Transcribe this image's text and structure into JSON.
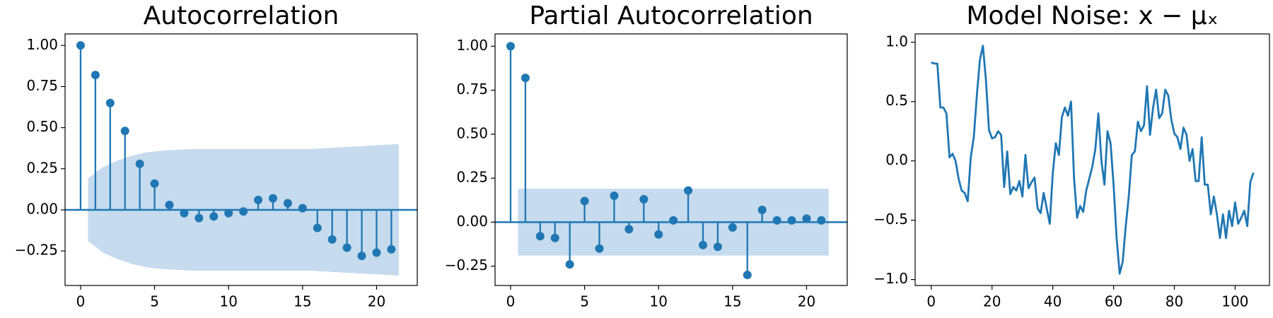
{
  "chart_data": [
    {
      "type": "stem",
      "title": "Autocorrelation",
      "color": "#1f77b4",
      "band_color": "#c6dbee",
      "x": [
        0,
        1,
        2,
        3,
        4,
        5,
        6,
        7,
        8,
        9,
        10,
        11,
        12,
        13,
        14,
        15,
        16,
        17,
        18,
        19,
        20,
        21
      ],
      "values": [
        1.0,
        0.82,
        0.65,
        0.48,
        0.28,
        0.16,
        0.03,
        -0.02,
        -0.05,
        -0.04,
        -0.02,
        -0.01,
        0.06,
        0.07,
        0.04,
        0.01,
        -0.11,
        -0.18,
        -0.23,
        -0.28,
        -0.26,
        -0.24
      ],
      "band": {
        "x": [
          0.5,
          1.5,
          2.5,
          3.5,
          4.5,
          5.5,
          6.5,
          7.5,
          8.5,
          9.5,
          10.5,
          11.5,
          12.5,
          13.5,
          14.5,
          15.5,
          16.5,
          17.5,
          18.5,
          19.5,
          20.5,
          21.5
        ],
        "upper": [
          0.19,
          0.26,
          0.3,
          0.33,
          0.35,
          0.36,
          0.365,
          0.37,
          0.37,
          0.37,
          0.37,
          0.37,
          0.37,
          0.37,
          0.37,
          0.37,
          0.375,
          0.38,
          0.385,
          0.39,
          0.395,
          0.4
        ],
        "lower": [
          -0.19,
          -0.26,
          -0.3,
          -0.33,
          -0.35,
          -0.36,
          -0.365,
          -0.37,
          -0.37,
          -0.37,
          -0.37,
          -0.37,
          -0.37,
          -0.37,
          -0.37,
          -0.37,
          -0.375,
          -0.38,
          -0.385,
          -0.39,
          -0.395,
          -0.4
        ]
      },
      "xlim": [
        -1.05,
        22.75
      ],
      "ylim": [
        -0.46,
        1.07
      ],
      "xticks": [
        0,
        5,
        10,
        15,
        20
      ],
      "yticks": [
        {
          "value": -0.25,
          "label": "−0.25"
        },
        {
          "value": 0,
          "label": "0.00"
        },
        {
          "value": 0.25,
          "label": "0.25"
        },
        {
          "value": 0.5,
          "label": "0.50"
        },
        {
          "value": 0.75,
          "label": "0.75"
        },
        {
          "value": 1,
          "label": "1.00"
        }
      ]
    },
    {
      "type": "stem",
      "title": "Partial Autocorrelation",
      "color": "#1f77b4",
      "band_color": "#c6dbee",
      "x": [
        0,
        1,
        2,
        3,
        4,
        5,
        6,
        7,
        8,
        9,
        10,
        11,
        12,
        13,
        14,
        15,
        16,
        17,
        18,
        19,
        20,
        21
      ],
      "values": [
        1.0,
        0.82,
        -0.08,
        -0.09,
        -0.24,
        0.12,
        -0.15,
        0.15,
        -0.04,
        0.13,
        -0.07,
        0.01,
        0.18,
        -0.13,
        -0.14,
        -0.03,
        -0.3,
        0.07,
        0.01,
        0.01,
        0.02,
        0.01
      ],
      "band": {
        "x": [
          0.5,
          21.5
        ],
        "upper": [
          0.19,
          0.19
        ],
        "lower": [
          -0.19,
          -0.19
        ]
      },
      "xlim": [
        -1.05,
        22.75
      ],
      "ylim": [
        -0.36,
        1.07
      ],
      "xticks": [
        0,
        5,
        10,
        15,
        20
      ],
      "yticks": [
        {
          "value": -0.25,
          "label": "−0.25"
        },
        {
          "value": 0,
          "label": "0.00"
        },
        {
          "value": 0.25,
          "label": "0.25"
        },
        {
          "value": 0.5,
          "label": "0.50"
        },
        {
          "value": 0.75,
          "label": "0.75"
        },
        {
          "value": 1,
          "label": "1.00"
        }
      ]
    },
    {
      "type": "line",
      "title": "Model Noise: x − μₓ",
      "color": "#1f77b4",
      "x": [
        0,
        1,
        2,
        3,
        4,
        5,
        6,
        7,
        8,
        9,
        10,
        11,
        12,
        13,
        14,
        15,
        16,
        17,
        18,
        19,
        20,
        21,
        22,
        23,
        24,
        25,
        26,
        27,
        28,
        29,
        30,
        31,
        32,
        33,
        34,
        35,
        36,
        37,
        38,
        39,
        40,
        41,
        42,
        43,
        44,
        45,
        46,
        47,
        48,
        49,
        50,
        51,
        52,
        53,
        54,
        55,
        56,
        57,
        58,
        59,
        60,
        61,
        62,
        63,
        64,
        65,
        66,
        67,
        68,
        69,
        70,
        71,
        72,
        73,
        74,
        75,
        76,
        77,
        78,
        79,
        80,
        81,
        82,
        83,
        84,
        85,
        86,
        87,
        88,
        89,
        90,
        91,
        92,
        93,
        94,
        95,
        96,
        97,
        98,
        99,
        100,
        101,
        102,
        103,
        104,
        105,
        106
      ],
      "values": [
        0.83,
        0.82,
        0.82,
        0.45,
        0.45,
        0.4,
        0.03,
        0.06,
        0.0,
        -0.15,
        -0.25,
        -0.27,
        -0.34,
        0.03,
        0.2,
        0.55,
        0.85,
        0.97,
        0.68,
        0.26,
        0.19,
        0.2,
        0.25,
        0.22,
        -0.22,
        0.08,
        -0.28,
        -0.22,
        -0.25,
        -0.17,
        -0.3,
        0.05,
        -0.23,
        -0.18,
        -0.14,
        -0.4,
        -0.44,
        -0.27,
        -0.4,
        -0.53,
        -0.1,
        0.15,
        0.05,
        0.37,
        0.45,
        0.38,
        0.5,
        -0.15,
        -0.48,
        -0.38,
        -0.43,
        -0.25,
        -0.15,
        -0.05,
        0.1,
        0.4,
        0.0,
        -0.2,
        0.25,
        0.15,
        -0.2,
        -0.65,
        -0.95,
        -0.85,
        -0.55,
        -0.3,
        0.05,
        0.08,
        0.33,
        0.25,
        0.3,
        0.63,
        0.22,
        0.45,
        0.6,
        0.36,
        0.4,
        0.6,
        0.55,
        0.35,
        0.23,
        0.2,
        0.1,
        0.28,
        0.22,
        0.0,
        0.1,
        -0.17,
        -0.17,
        0.2,
        -0.2,
        -0.2,
        -0.45,
        -0.3,
        -0.45,
        -0.65,
        -0.45,
        -0.65,
        -0.42,
        -0.55,
        -0.35,
        -0.53,
        -0.48,
        -0.42,
        -0.55,
        -0.18,
        -0.1
      ],
      "xlim": [
        -5.3,
        111.3
      ],
      "ylim": [
        -1.05,
        1.07
      ],
      "xticks": [
        0,
        20,
        40,
        60,
        80,
        100
      ],
      "yticks": [
        {
          "value": -1,
          "label": "−1.0"
        },
        {
          "value": -0.5,
          "label": "−0.5"
        },
        {
          "value": 0,
          "label": "0.0"
        },
        {
          "value": 0.5,
          "label": "0.5"
        },
        {
          "value": 1,
          "label": "1.0"
        }
      ]
    }
  ]
}
